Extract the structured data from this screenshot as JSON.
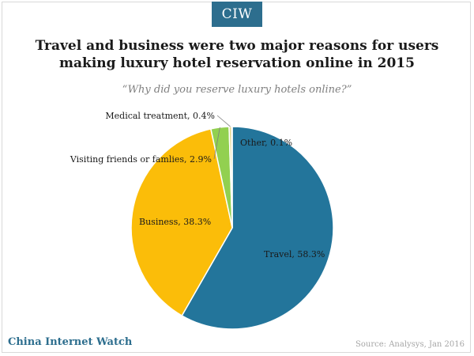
{
  "brand": {
    "logo_text": "CIW",
    "name": "China Internet Watch"
  },
  "chart_data": {
    "type": "pie",
    "title": "Travel and business were two major reasons for users making luxury hotel reservation online in 2015",
    "subtitle": "“Why did you reserve luxury hotels online?”",
    "slices": [
      {
        "label": "Travel",
        "value": 58.3,
        "color": "#23759b",
        "data_label": "Travel, 58.3%"
      },
      {
        "label": "Business",
        "value": 38.3,
        "color": "#fbbd09",
        "data_label": "Business, 38.3%"
      },
      {
        "label": "Visiting friends or famlies",
        "value": 2.9,
        "color": "#92d050",
        "data_label": "Visiting friends or famlies, 2.9%"
      },
      {
        "label": "Medical treatment",
        "value": 0.4,
        "color": "#e6d58a",
        "data_label": "Medical treatment, 0.4%"
      },
      {
        "label": "Other",
        "value": 0.1,
        "color": "#1f5f80",
        "data_label": "Other, 0.1%"
      }
    ],
    "start_angle_deg": 0,
    "direction": "clockwise",
    "slice_border_color": "#ffffff"
  },
  "source": "Source: Analysys, Jan 2016"
}
